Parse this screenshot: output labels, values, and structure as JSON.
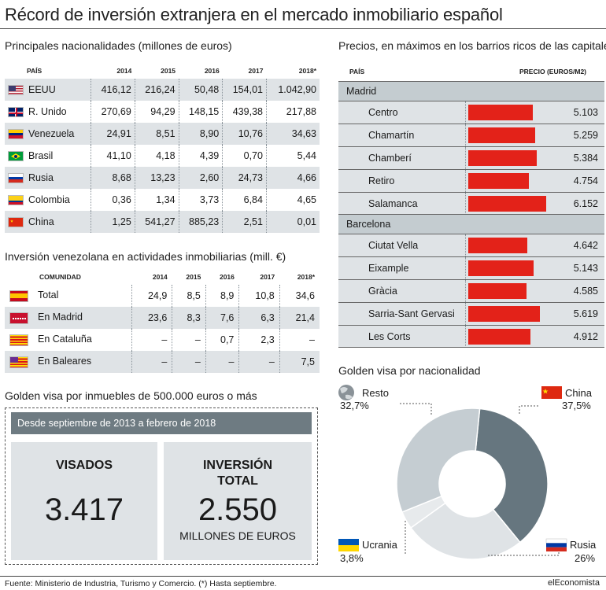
{
  "title": "Récord de inversión extranjera en el mercado inmobiliario español",
  "table1": {
    "subtitle": "Principales nacionalidades (millones de euros)",
    "headers": [
      "PAÍS",
      "2014",
      "2015",
      "2016",
      "2017",
      "2018*"
    ],
    "rows": [
      {
        "country": "EEUU",
        "flag": "usa",
        "values": [
          "416,12",
          "216,24",
          "50,48",
          "154,01",
          "1.042,90"
        ]
      },
      {
        "country": "R. Unido",
        "flag": "uk",
        "values": [
          "270,69",
          "94,29",
          "148,15",
          "439,38",
          "217,88"
        ]
      },
      {
        "country": "Venezuela",
        "flag": "venezuela",
        "values": [
          "24,91",
          "8,51",
          "8,90",
          "10,76",
          "34,63"
        ]
      },
      {
        "country": "Brasil",
        "flag": "brazil",
        "values": [
          "41,10",
          "4,18",
          "4,39",
          "0,70",
          "5,44"
        ]
      },
      {
        "country": "Rusia",
        "flag": "russia",
        "values": [
          "8,68",
          "13,23",
          "2,60",
          "24,73",
          "4,66"
        ]
      },
      {
        "country": "Colombia",
        "flag": "colombia",
        "values": [
          "0,36",
          "1,34",
          "3,73",
          "6,84",
          "4,65"
        ]
      },
      {
        "country": "China",
        "flag": "china",
        "values": [
          "1,25",
          "541,27",
          "885,23",
          "2,51",
          "0,01"
        ]
      }
    ]
  },
  "table2": {
    "subtitle": "Inversión venezolana en actividades inmobiliarias (mill. €)",
    "headers": [
      "COMUNIDAD",
      "2014",
      "2015",
      "2016",
      "2017",
      "2018*"
    ],
    "rows": [
      {
        "label": "Total",
        "flag": "spain",
        "values": [
          "24,9",
          "8,5",
          "8,9",
          "10,8",
          "34,6"
        ]
      },
      {
        "label": "En Madrid",
        "flag": "madrid",
        "values": [
          "23,6",
          "8,3",
          "7,6",
          "6,3",
          "21,4"
        ]
      },
      {
        "label": "En Cataluña",
        "flag": "cataluna",
        "values": [
          "–",
          "–",
          "0,7",
          "2,3",
          "–"
        ]
      },
      {
        "label": "En Baleares",
        "flag": "baleares",
        "values": [
          "–",
          "–",
          "–",
          "–",
          "7,5"
        ]
      }
    ]
  },
  "golden_inmuebles": {
    "subtitle": "Golden visa por inmuebles de 500.000 euros o más",
    "period": "Desde septiembre de 2013 a febrero de 2018",
    "visados_label": "VISADOS",
    "visados_value": "3.417",
    "inversion_label_1": "INVERSIÓN",
    "inversion_label_2": "TOTAL",
    "inversion_value": "2.550",
    "inversion_unit": "MILLONES DE EUROS"
  },
  "prices": {
    "subtitle": "Precios, en máximos en los barrios ricos de las capitales",
    "col_pais": "PAÍS",
    "col_precio": "PRECIO (EUROS/M2)",
    "bar_color": "#e32219"
  },
  "pie": {
    "subtitle": "Golden visa por nacionalidad",
    "colors": {
      "china": "#66767f",
      "rusia": "#dfe3e6",
      "ucrania": "#e7eaec",
      "resto": "#c5cdd2"
    }
  },
  "chart_data": [
    {
      "type": "bar",
      "orientation": "horizontal",
      "title": "Precios, en máximos en los barrios ricos de las capitales",
      "ylabel": "PRECIO (EUROS/M2)",
      "groups": [
        {
          "name": "Madrid",
          "categories": [
            "Centro",
            "Chamartín",
            "Chamberí",
            "Retiro",
            "Salamanca"
          ],
          "values": [
            5103,
            5259,
            5384,
            4754,
            6152
          ],
          "labels": [
            "5.103",
            "5.259",
            "5.384",
            "4.754",
            "6.152"
          ]
        },
        {
          "name": "Barcelona",
          "categories": [
            "Ciutat Vella",
            "Eixample",
            "Gràcia",
            "Sarria-Sant Gervasi",
            "Les Corts"
          ],
          "values": [
            4642,
            5143,
            4585,
            5619,
            4912
          ],
          "labels": [
            "4.642",
            "5.143",
            "4.585",
            "5.619",
            "4.912"
          ]
        }
      ],
      "xlim": [
        0,
        6500
      ]
    },
    {
      "type": "pie",
      "title": "Golden visa por nacionalidad",
      "categories": [
        "China",
        "Rusia",
        "Ucrania",
        "Resto"
      ],
      "values": [
        37.5,
        26,
        3.8,
        32.7
      ],
      "labels": [
        "37,5%",
        "26%",
        "3,8%",
        "32,7%"
      ],
      "donut": true
    }
  ],
  "footer": {
    "source": "Fuente: Ministerio de Industria, Turismo y Comercio. (*) Hasta septiembre.",
    "brand": "elEconomista"
  }
}
